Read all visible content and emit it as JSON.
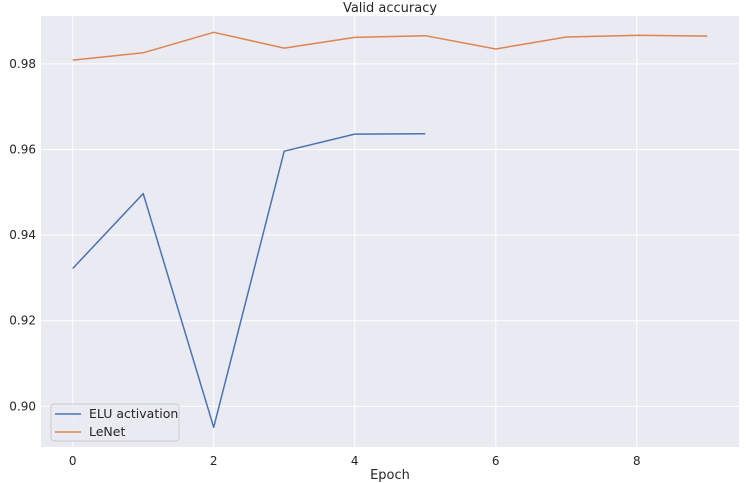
{
  "chart_data": {
    "type": "line",
    "title": "Valid accuracy",
    "xlabel": "Epoch",
    "ylabel": "",
    "xlim": [
      -0.45,
      9.45
    ],
    "ylim": [
      0.8905,
      0.9912
    ],
    "xticks": [
      0,
      2,
      4,
      6,
      8
    ],
    "yticks": [
      0.9,
      0.92,
      0.94,
      0.96,
      0.98
    ],
    "ytick_labels": [
      "0.90",
      "0.92",
      "0.94",
      "0.96",
      "0.98"
    ],
    "grid": true,
    "legend_position": "lower-left",
    "series": [
      {
        "name": "ELU activation",
        "color": "#4c72b0",
        "x": [
          0,
          1,
          2,
          3,
          4,
          5
        ],
        "values": [
          0.9322,
          0.9497,
          0.8951,
          0.9596,
          0.9636,
          0.9637
        ]
      },
      {
        "name": "LeNet",
        "color": "#dd8452",
        "x": [
          0,
          1,
          2,
          3,
          4,
          5,
          6,
          7,
          8,
          9
        ],
        "values": [
          0.9809,
          0.9826,
          0.9874,
          0.9837,
          0.9862,
          0.9866,
          0.9835,
          0.9863,
          0.9867,
          0.9865
        ]
      }
    ]
  }
}
